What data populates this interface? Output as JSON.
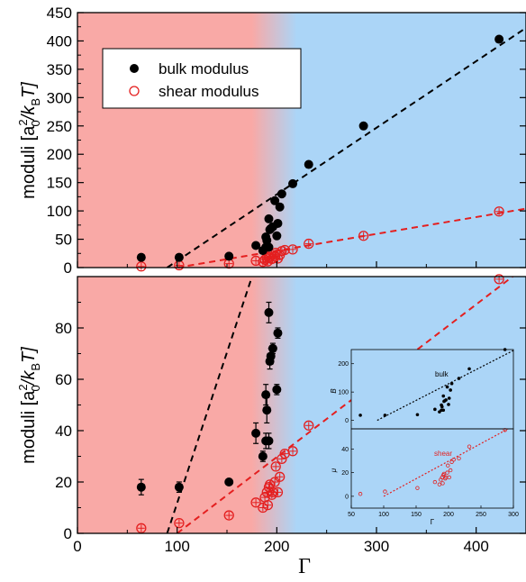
{
  "colors": {
    "red_region": "#f9a9a6",
    "blue_region": "#abd5f7",
    "bulk": "#000000",
    "shear": "#e41f1f"
  },
  "x_axis": {
    "label": "Γ",
    "range": [
      0,
      450
    ],
    "ticks": [
      0,
      100,
      200,
      300,
      400
    ]
  },
  "top_panel": {
    "ylabel_main": "moduli [a",
    "ylabel_sup": "2",
    "ylabel_sub": "0",
    "ylabel_div": "/k",
    "ylabel_sub2": "B",
    "ylabel_end": "T]",
    "ylim": [
      0,
      450
    ],
    "yticks": [
      0,
      50,
      100,
      150,
      200,
      250,
      300,
      350,
      400,
      450
    ],
    "legend": {
      "bulk": "bulk modulus",
      "shear": "shear modulus"
    }
  },
  "bottom_panel": {
    "ylabel_main": "moduli [a",
    "ylabel_sup": "2",
    "ylabel_sub": "0",
    "ylabel_div": "/k",
    "ylabel_sub2": "B",
    "ylabel_end": "T]",
    "ylim": [
      0,
      100
    ],
    "yticks": [
      0,
      20,
      40,
      60,
      80
    ]
  },
  "inset": {
    "xticks": [
      50,
      100,
      150,
      200,
      250,
      300
    ],
    "xlabel": "Γ",
    "top_ylabel": "B",
    "top_yticks": [
      0,
      100,
      200
    ],
    "bottom_ylabel": "μ",
    "bottom_yticks": [
      0,
      20,
      40
    ],
    "bulk_label": "bulk",
    "shear_label": "shear"
  },
  "chart_data": {
    "type": "scatter",
    "xlabel": "Γ",
    "regions": [
      {
        "from": 0,
        "to": 175,
        "color": "red"
      },
      {
        "from": 175,
        "to": 220,
        "color": "gradient"
      },
      {
        "from": 220,
        "to": 450,
        "color": "blue"
      }
    ],
    "series": [
      {
        "name": "bulk modulus",
        "points": [
          [
            64,
            18
          ],
          [
            102,
            18
          ],
          [
            152,
            20
          ],
          [
            179,
            39
          ],
          [
            186,
            30
          ],
          [
            189,
            36
          ],
          [
            189,
            54
          ],
          [
            190,
            48
          ],
          [
            192,
            86
          ],
          [
            192,
            36
          ],
          [
            193,
            67
          ],
          [
            194,
            69
          ],
          [
            196,
            72
          ],
          [
            198,
            118
          ],
          [
            200,
            56
          ],
          [
            201,
            78
          ],
          [
            203,
            107
          ],
          [
            205,
            130
          ],
          [
            216,
            148
          ],
          [
            232,
            182
          ],
          [
            287,
            250
          ],
          [
            423,
            403
          ]
        ],
        "errors_bottom_panel": [
          3,
          2,
          1,
          4,
          2,
          3,
          4,
          5,
          4,
          3,
          3,
          3,
          2,
          4,
          2,
          2,
          2,
          2,
          2,
          2,
          2,
          2
        ]
      },
      {
        "name": "shear modulus",
        "points": [
          [
            64,
            2
          ],
          [
            102,
            4
          ],
          [
            152,
            7
          ],
          [
            179,
            12
          ],
          [
            186,
            10
          ],
          [
            188,
            14
          ],
          [
            190,
            16
          ],
          [
            191,
            11
          ],
          [
            192,
            18
          ],
          [
            193,
            19
          ],
          [
            195,
            15
          ],
          [
            196,
            16
          ],
          [
            198,
            20
          ],
          [
            199,
            26
          ],
          [
            201,
            16
          ],
          [
            203,
            22
          ],
          [
            205,
            29
          ],
          [
            208,
            31
          ],
          [
            216,
            32
          ],
          [
            232,
            42
          ],
          [
            287,
            56
          ],
          [
            423,
            99
          ]
        ]
      }
    ],
    "fits": [
      {
        "name": "bulk",
        "x": [
          90,
          450
        ],
        "y": [
          0,
          423
        ]
      },
      {
        "name": "shear",
        "x": [
          100,
          450
        ],
        "y": [
          0,
          104
        ]
      }
    ]
  }
}
